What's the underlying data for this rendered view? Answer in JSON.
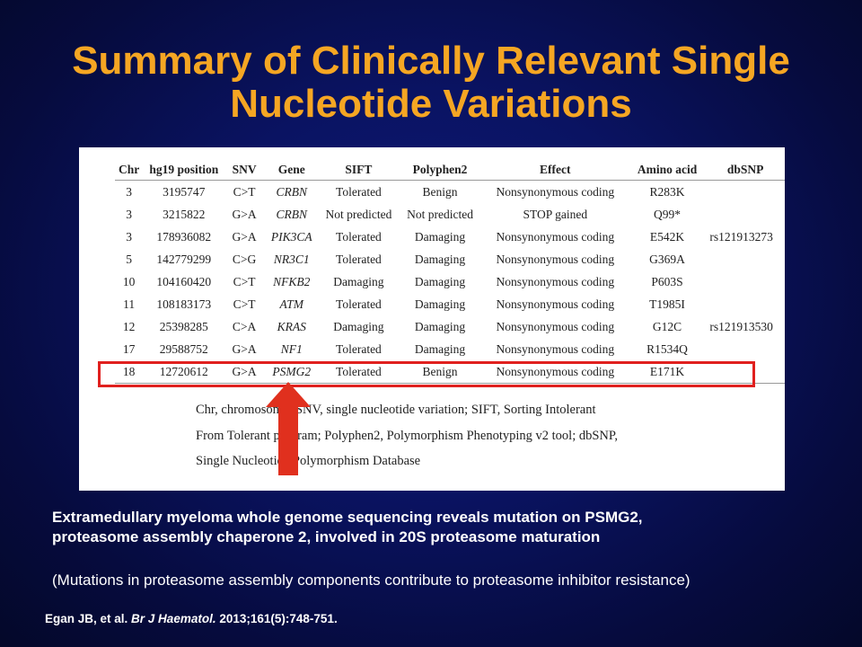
{
  "slide": {
    "title_line1": "Summary of Clinically Relevant Single",
    "title_line2": "Nucleotide Variations",
    "colors": {
      "title": "#f5a623",
      "highlight": "#e0201e",
      "arrow": "#e0301e",
      "background": "#0a1362"
    }
  },
  "table": {
    "headers": [
      "Chr",
      "hg19 position",
      "SNV",
      "Gene",
      "SIFT",
      "Polyphen2",
      "Effect",
      "Amino acid",
      "dbSNP"
    ],
    "rows": [
      [
        "3",
        "3195747",
        "C>T",
        "CRBN",
        "Tolerated",
        "Benign",
        "Nonsynonymous coding",
        "R283K",
        ""
      ],
      [
        "3",
        "3215822",
        "G>A",
        "CRBN",
        "Not predicted",
        "Not predicted",
        "STOP gained",
        "Q99*",
        ""
      ],
      [
        "3",
        "178936082",
        "G>A",
        "PIK3CA",
        "Tolerated",
        "Damaging",
        "Nonsynonymous coding",
        "E542K",
        "rs121913273"
      ],
      [
        "5",
        "142779299",
        "C>G",
        "NR3C1",
        "Tolerated",
        "Damaging",
        "Nonsynonymous coding",
        "G369A",
        ""
      ],
      [
        "10",
        "104160420",
        "C>T",
        "NFKB2",
        "Damaging",
        "Damaging",
        "Nonsynonymous coding",
        "P603S",
        ""
      ],
      [
        "11",
        "108183173",
        "C>T",
        "ATM",
        "Tolerated",
        "Damaging",
        "Nonsynonymous coding",
        "T1985I",
        ""
      ],
      [
        "12",
        "25398285",
        "C>A",
        "KRAS",
        "Damaging",
        "Damaging",
        "Nonsynonymous coding",
        "G12C",
        "rs121913530"
      ],
      [
        "17",
        "29588752",
        "G>A",
        "NF1",
        "Tolerated",
        "Damaging",
        "Nonsynonymous coding",
        "R1534Q",
        ""
      ],
      [
        "18",
        "12720612",
        "G>A",
        "PSMG2",
        "Tolerated",
        "Benign",
        "Nonsynonymous coding",
        "E171K",
        ""
      ]
    ],
    "highlighted_row": 8
  },
  "footnote": {
    "line1": "Chr, chromosome; SNV, single nucleotide variation; SIFT, Sorting Intolerant",
    "line2": "From Tolerant program; Polyphen2, Polymorphism Phenotyping v2 tool; dbSNP,",
    "line3": "Single Nucleotide Polymorphism Database"
  },
  "summary": {
    "line1": "Extramedullary myeloma whole genome sequencing reveals mutation on PSMG2,",
    "line2": "proteasome assembly chaperone 2, involved in 20S proteasome maturation",
    "note": "(Mutations in proteasome assembly components contribute to proteasome inhibitor resistance)"
  },
  "citation": {
    "authors": "Egan JB, et al.",
    "journal": "Br J Haematol.",
    "details": "2013;161(5):748-751."
  }
}
